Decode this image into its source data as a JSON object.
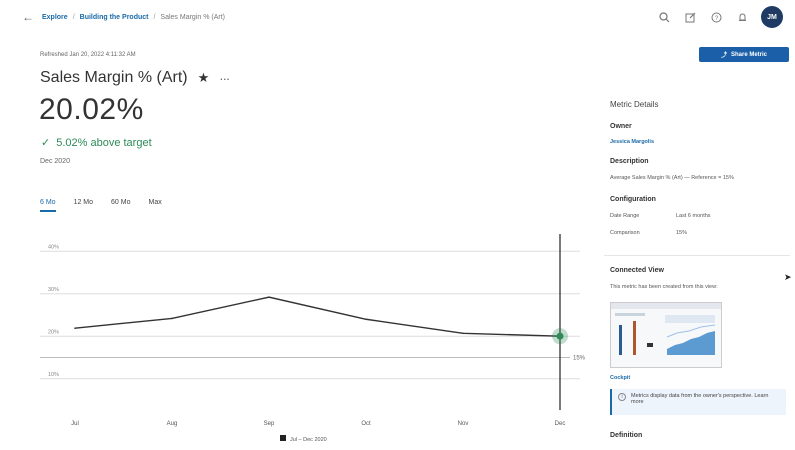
{
  "topbar": {
    "back_icon": "back-arrow-icon",
    "breadcrumbs": [
      "Explore",
      "Building the Product",
      "Sales Margin % (Art)"
    ],
    "avatar_initials": "JM"
  },
  "share_button": {
    "label": "Share Metric"
  },
  "metric": {
    "refreshed": "Refreshed Jan 20, 2022 4:11:32 AM",
    "title": "Sales Margin % (Art)",
    "value": "20.02%",
    "comparison": "5.02% above target",
    "period": "Dec 2020"
  },
  "ranges": [
    "6 Mo",
    "12 Mo",
    "60 Mo",
    "Max"
  ],
  "chart_data": {
    "type": "line",
    "x": [
      "Jul",
      "Aug",
      "Sep",
      "Oct",
      "Nov",
      "Dec"
    ],
    "series": [
      {
        "name": "Jul – Dec 2020",
        "values": [
          21.9,
          24.2,
          29.2,
          24.0,
          20.7,
          20.02
        ]
      }
    ],
    "y_ticks": [
      "40%",
      "30%",
      "20%",
      "10%"
    ],
    "target_label": "15%",
    "target_value": 15,
    "ylim": [
      5,
      45
    ],
    "legend": "Jul – Dec 2020",
    "grid": true,
    "colors": {
      "line": "#333333",
      "marker": "#2e8b57",
      "grid": "#dddddd"
    }
  },
  "panel": {
    "title": "Metric Details",
    "owner_label": "Owner",
    "owner": "Jessica Margolis",
    "description_label": "Description",
    "description": "Average Sales Margin % (Art) — Reference = 15%",
    "configuration_label": "Configuration",
    "config": [
      {
        "key": "Date Range",
        "value": "Last 6 months"
      },
      {
        "key": "Comparison",
        "value": "15%"
      }
    ],
    "connected_label": "Connected View",
    "connected_text": "This metric has been created from this view:",
    "cockpit_link": "Cockpit",
    "info_text": "Metrics display data from the owner's perspective. Learn more",
    "definition_label": "Definition"
  }
}
